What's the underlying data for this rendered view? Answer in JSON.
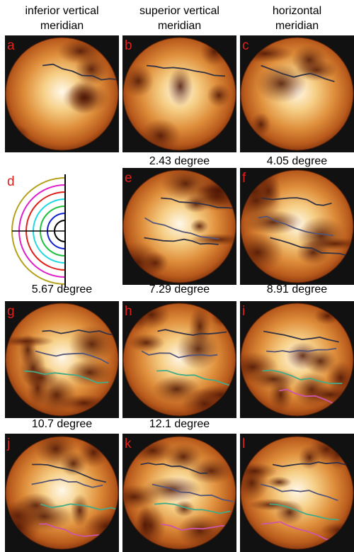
{
  "column_headers": [
    "inferior vertical meridian",
    "superior vertical meridian",
    "horizontal meridian"
  ],
  "panels": [
    {
      "letter": "a"
    },
    {
      "letter": "b"
    },
    {
      "letter": "c"
    },
    {
      "letter": "d"
    },
    {
      "letter": "e",
      "label": "2.43 degree"
    },
    {
      "letter": "f",
      "label": "4.05 degree"
    },
    {
      "letter": "g",
      "label": "5.67 degree"
    },
    {
      "letter": "h",
      "label": "7.29 degree"
    },
    {
      "letter": "i",
      "label": "8.91 degree"
    },
    {
      "letter": "j",
      "label": "10.7 degree"
    },
    {
      "letter": "k",
      "label": "12.1 degree"
    },
    {
      "letter": "l"
    }
  ]
}
